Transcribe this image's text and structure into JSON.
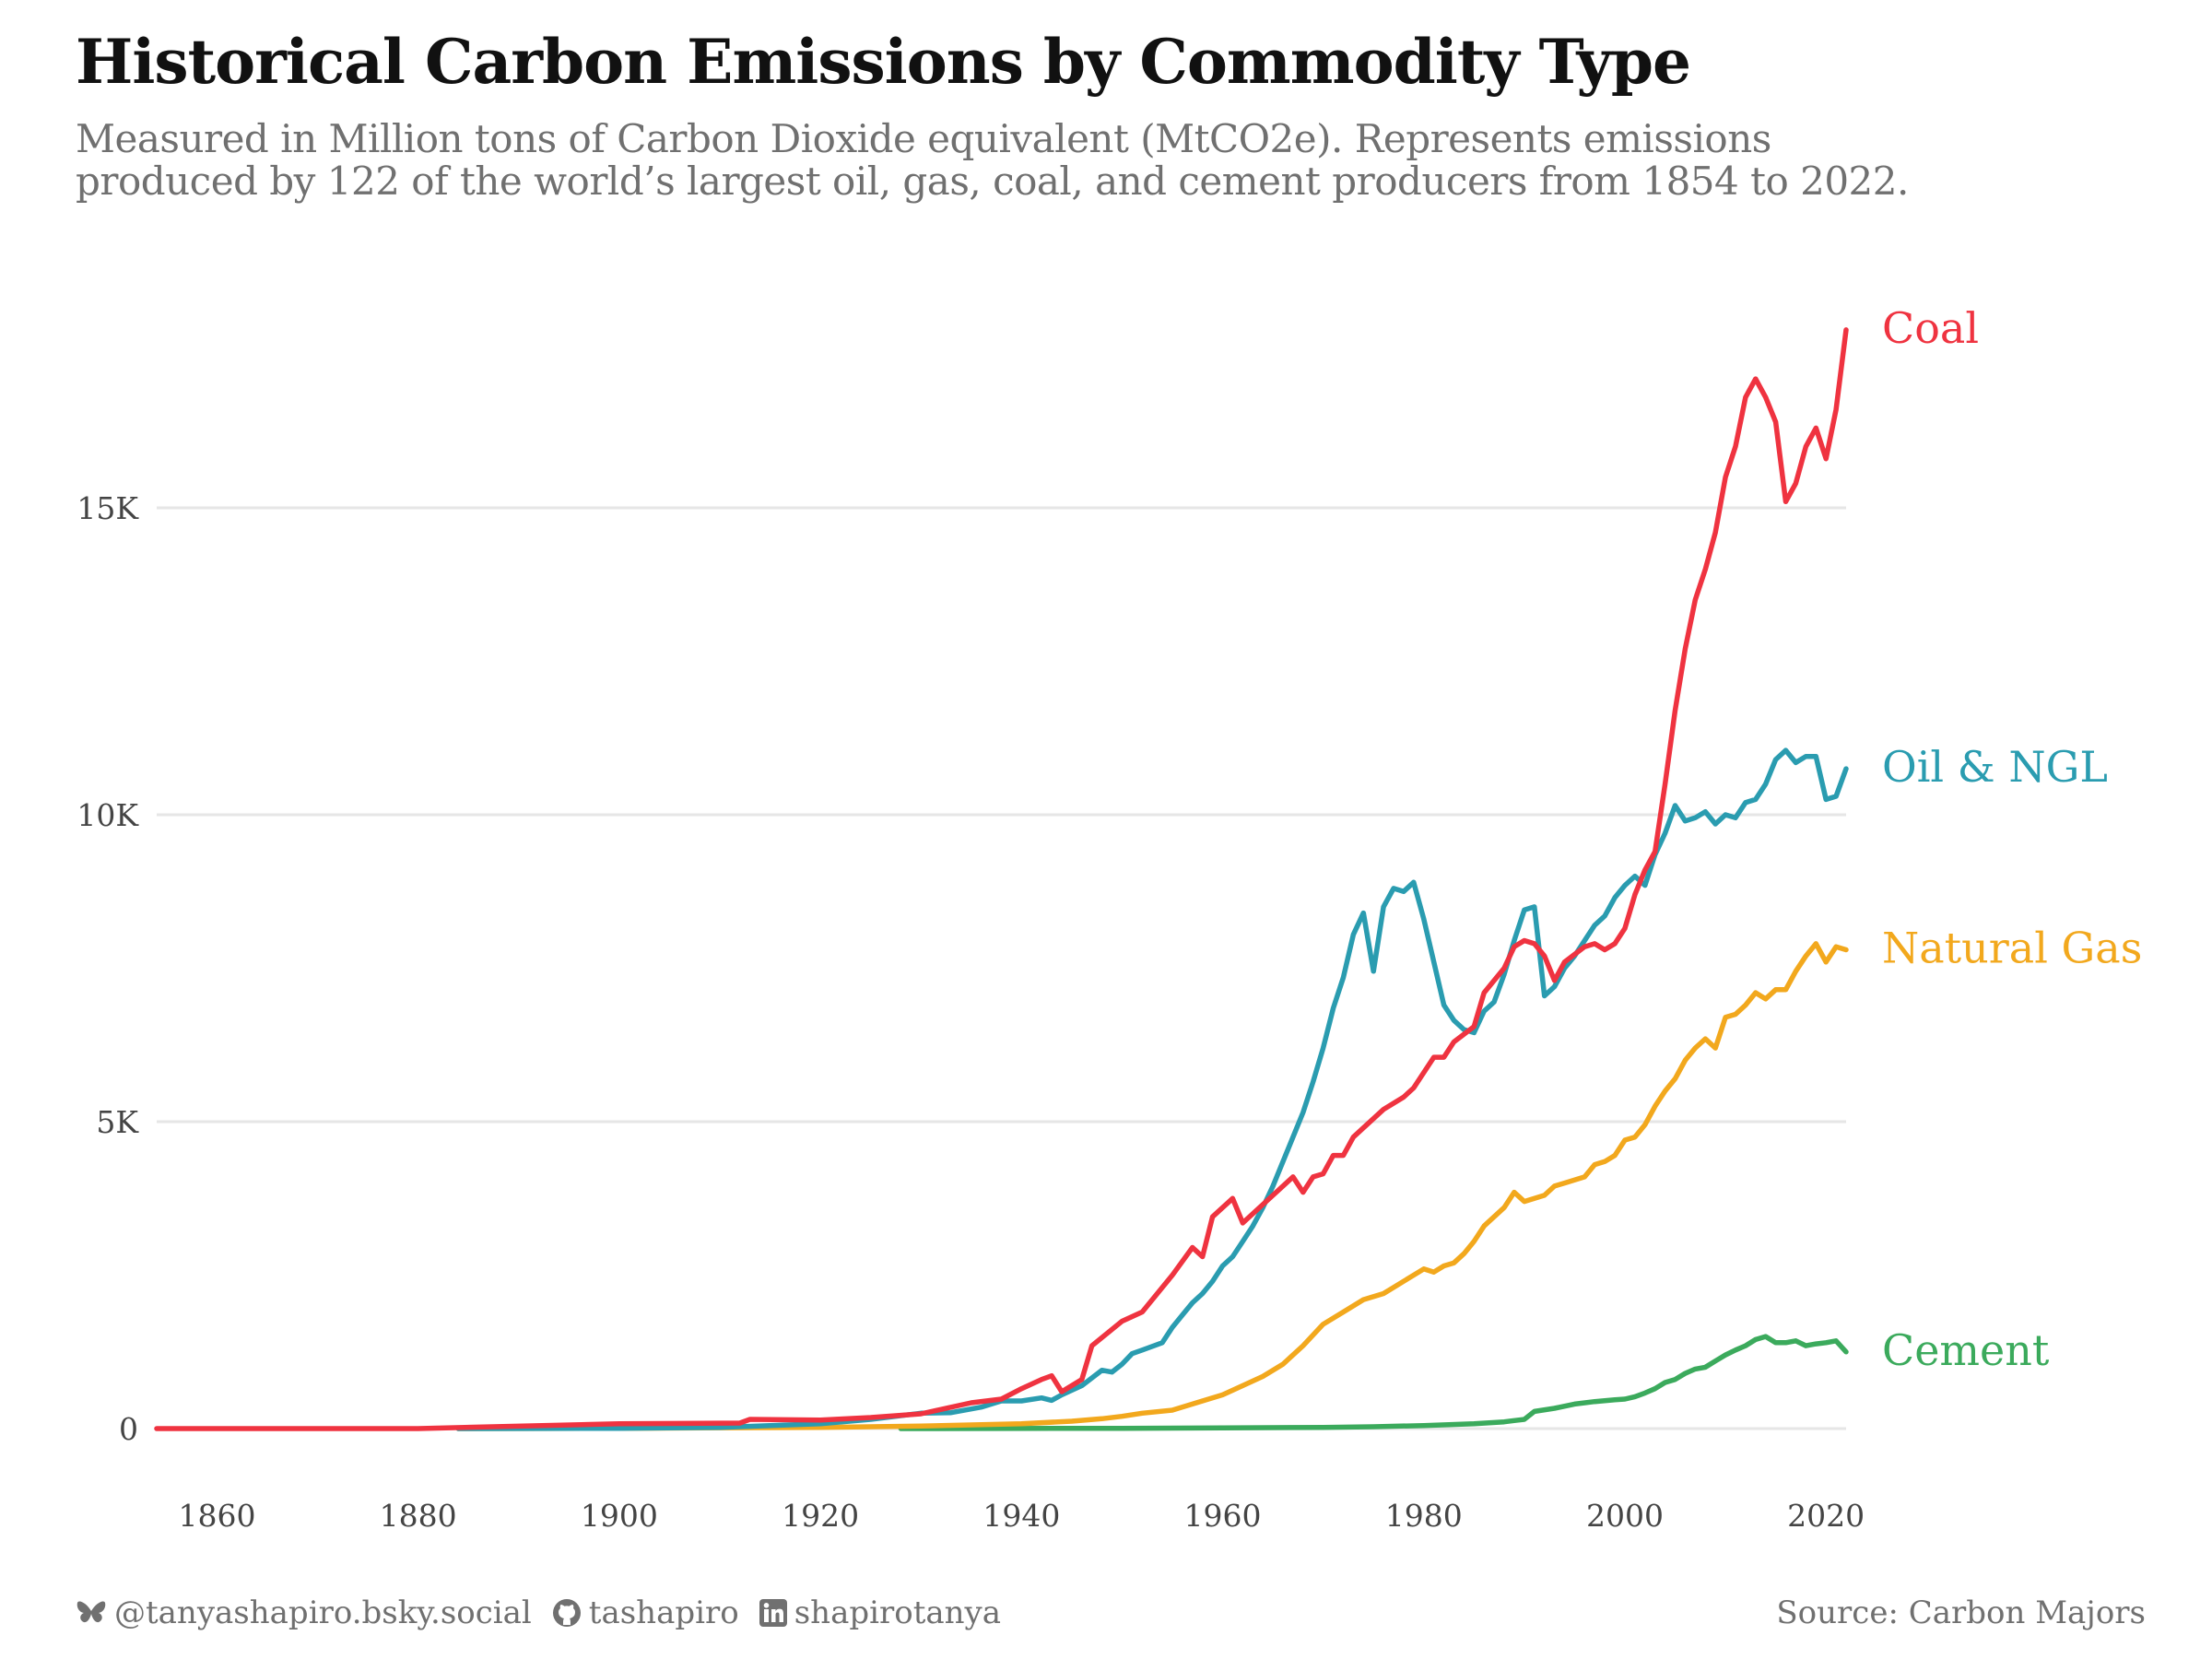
{
  "header": {
    "title": "Historical Carbon Emissions by Commodity Type",
    "subtitle_line1": "Measured in Million tons of Carbon Dioxide equivalent (MtCO2e). Represents emissions",
    "subtitle_line2": "produced by 122 of the world’s largest oil, gas, coal, and cement producers from 1854 to 2022."
  },
  "footer": {
    "bluesky": "@tanyashapiro.bsky.social",
    "github": "tashapiro",
    "linkedin": "shapirotanya",
    "source": "Source: Carbon Majors",
    "icons": [
      "butterfly-icon",
      "github-icon",
      "linkedin-icon"
    ]
  },
  "chart_data": {
    "type": "line",
    "xlim": [
      1854,
      2022
    ],
    "ylim": [
      0,
      18000
    ],
    "x_ticks": [
      1860,
      1880,
      1900,
      1920,
      1940,
      1960,
      1980,
      2000,
      2020
    ],
    "x_tick_labels": [
      "1860",
      "1880",
      "1900",
      "1920",
      "1940",
      "1960",
      "1980",
      "2000",
      "2020"
    ],
    "y_ticks": [
      0,
      5000,
      10000,
      15000
    ],
    "y_tick_labels": [
      "0",
      "5K",
      "10K",
      "15K"
    ],
    "grid": "horizontal",
    "legend": "direct labels at line ends",
    "series": [
      {
        "name": "Coal",
        "color": "#EF3340",
        "points": [
          [
            1854,
            0
          ],
          [
            1880,
            0
          ],
          [
            1900,
            80
          ],
          [
            1912,
            90
          ],
          [
            1913,
            150
          ],
          [
            1920,
            140
          ],
          [
            1925,
            180
          ],
          [
            1930,
            240
          ],
          [
            1935,
            420
          ],
          [
            1938,
            480
          ],
          [
            1940,
            650
          ],
          [
            1942,
            800
          ],
          [
            1943,
            860
          ],
          [
            1944,
            600
          ],
          [
            1946,
            800
          ],
          [
            1947,
            1350
          ],
          [
            1950,
            1750
          ],
          [
            1952,
            1900
          ],
          [
            1955,
            2500
          ],
          [
            1957,
            2950
          ],
          [
            1958,
            2800
          ],
          [
            1959,
            3450
          ],
          [
            1961,
            3750
          ],
          [
            1962,
            3350
          ],
          [
            1965,
            3800
          ],
          [
            1967,
            4100
          ],
          [
            1968,
            3850
          ],
          [
            1969,
            4100
          ],
          [
            1970,
            4150
          ],
          [
            1971,
            4450
          ],
          [
            1972,
            4450
          ],
          [
            1973,
            4750
          ],
          [
            1975,
            5050
          ],
          [
            1976,
            5200
          ],
          [
            1978,
            5400
          ],
          [
            1979,
            5550
          ],
          [
            1981,
            6050
          ],
          [
            1982,
            6050
          ],
          [
            1983,
            6300
          ],
          [
            1985,
            6550
          ],
          [
            1986,
            7100
          ],
          [
            1988,
            7500
          ],
          [
            1989,
            7850
          ],
          [
            1990,
            7950
          ],
          [
            1991,
            7900
          ],
          [
            1992,
            7700
          ],
          [
            1993,
            7300
          ],
          [
            1994,
            7600
          ],
          [
            1996,
            7850
          ],
          [
            1997,
            7900
          ],
          [
            1998,
            7800
          ],
          [
            1999,
            7900
          ],
          [
            2000,
            8150
          ],
          [
            2001,
            8700
          ],
          [
            2002,
            9100
          ],
          [
            2003,
            9400
          ],
          [
            2004,
            10500
          ],
          [
            2005,
            11700
          ],
          [
            2006,
            12700
          ],
          [
            2007,
            13500
          ],
          [
            2008,
            14000
          ],
          [
            2009,
            14600
          ],
          [
            2010,
            15500
          ],
          [
            2011,
            16000
          ],
          [
            2012,
            16800
          ],
          [
            2013,
            17100
          ],
          [
            2014,
            16800
          ],
          [
            2015,
            16400
          ],
          [
            2016,
            15100
          ],
          [
            2017,
            15400
          ],
          [
            2018,
            16000
          ],
          [
            2019,
            16300
          ],
          [
            2020,
            15800
          ],
          [
            2021,
            16600
          ],
          [
            2022,
            17900
          ]
        ]
      },
      {
        "name": "Oil & NGL",
        "color": "#2A9CB0",
        "points": [
          [
            1884,
            0
          ],
          [
            1900,
            5
          ],
          [
            1910,
            20
          ],
          [
            1915,
            50
          ],
          [
            1920,
            80
          ],
          [
            1925,
            150
          ],
          [
            1930,
            250
          ],
          [
            1933,
            260
          ],
          [
            1936,
            350
          ],
          [
            1938,
            450
          ],
          [
            1940,
            450
          ],
          [
            1942,
            500
          ],
          [
            1943,
            460
          ],
          [
            1944,
            550
          ],
          [
            1946,
            700
          ],
          [
            1948,
            950
          ],
          [
            1949,
            920
          ],
          [
            1950,
            1050
          ],
          [
            1951,
            1220
          ],
          [
            1952,
            1280
          ],
          [
            1954,
            1400
          ],
          [
            1955,
            1650
          ],
          [
            1956,
            1850
          ],
          [
            1957,
            2050
          ],
          [
            1958,
            2200
          ],
          [
            1959,
            2400
          ],
          [
            1960,
            2650
          ],
          [
            1961,
            2800
          ],
          [
            1962,
            3050
          ],
          [
            1963,
            3300
          ],
          [
            1964,
            3600
          ],
          [
            1965,
            3950
          ],
          [
            1966,
            4350
          ],
          [
            1967,
            4750
          ],
          [
            1968,
            5150
          ],
          [
            1969,
            5650
          ],
          [
            1970,
            6200
          ],
          [
            1971,
            6850
          ],
          [
            1972,
            7350
          ],
          [
            1973,
            8050
          ],
          [
            1974,
            8400
          ],
          [
            1975,
            7450
          ],
          [
            1976,
            8500
          ],
          [
            1977,
            8800
          ],
          [
            1978,
            8750
          ],
          [
            1979,
            8900
          ],
          [
            1980,
            8300
          ],
          [
            1981,
            7600
          ],
          [
            1982,
            6900
          ],
          [
            1983,
            6650
          ],
          [
            1984,
            6500
          ],
          [
            1985,
            6450
          ],
          [
            1986,
            6800
          ],
          [
            1987,
            6950
          ],
          [
            1988,
            7400
          ],
          [
            1989,
            7950
          ],
          [
            1990,
            8450
          ],
          [
            1991,
            8500
          ],
          [
            1992,
            7050
          ],
          [
            1993,
            7200
          ],
          [
            1994,
            7500
          ],
          [
            1995,
            7700
          ],
          [
            1996,
            7950
          ],
          [
            1997,
            8200
          ],
          [
            1998,
            8350
          ],
          [
            1999,
            8650
          ],
          [
            2000,
            8850
          ],
          [
            2001,
            9000
          ],
          [
            2002,
            8850
          ],
          [
            2003,
            9350
          ],
          [
            2004,
            9700
          ],
          [
            2005,
            10150
          ],
          [
            2006,
            9900
          ],
          [
            2007,
            9950
          ],
          [
            2008,
            10050
          ],
          [
            2009,
            9850
          ],
          [
            2010,
            10000
          ],
          [
            2011,
            9950
          ],
          [
            2012,
            10200
          ],
          [
            2013,
            10250
          ],
          [
            2014,
            10500
          ],
          [
            2015,
            10900
          ],
          [
            2016,
            11050
          ],
          [
            2017,
            10850
          ],
          [
            2018,
            10950
          ],
          [
            2019,
            10950
          ],
          [
            2020,
            10250
          ],
          [
            2021,
            10300
          ],
          [
            2022,
            10750
          ]
        ]
      },
      {
        "name": "Natural Gas",
        "color": "#F2A81D",
        "points": [
          [
            1884,
            0
          ],
          [
            1900,
            5
          ],
          [
            1920,
            20
          ],
          [
            1930,
            40
          ],
          [
            1940,
            80
          ],
          [
            1945,
            120
          ],
          [
            1948,
            160
          ],
          [
            1950,
            200
          ],
          [
            1952,
            250
          ],
          [
            1955,
            300
          ],
          [
            1958,
            450
          ],
          [
            1960,
            550
          ],
          [
            1962,
            700
          ],
          [
            1964,
            850
          ],
          [
            1966,
            1050
          ],
          [
            1968,
            1350
          ],
          [
            1970,
            1700
          ],
          [
            1972,
            1900
          ],
          [
            1974,
            2100
          ],
          [
            1976,
            2200
          ],
          [
            1978,
            2400
          ],
          [
            1980,
            2600
          ],
          [
            1981,
            2550
          ],
          [
            1982,
            2650
          ],
          [
            1983,
            2700
          ],
          [
            1984,
            2850
          ],
          [
            1985,
            3050
          ],
          [
            1986,
            3300
          ],
          [
            1988,
            3600
          ],
          [
            1989,
            3850
          ],
          [
            1990,
            3700
          ],
          [
            1991,
            3750
          ],
          [
            1992,
            3800
          ],
          [
            1993,
            3950
          ],
          [
            1994,
            4000
          ],
          [
            1995,
            4050
          ],
          [
            1996,
            4100
          ],
          [
            1997,
            4300
          ],
          [
            1998,
            4350
          ],
          [
            1999,
            4450
          ],
          [
            2000,
            4700
          ],
          [
            2001,
            4750
          ],
          [
            2002,
            4950
          ],
          [
            2003,
            5250
          ],
          [
            2004,
            5500
          ],
          [
            2005,
            5700
          ],
          [
            2006,
            6000
          ],
          [
            2007,
            6200
          ],
          [
            2008,
            6350
          ],
          [
            2009,
            6200
          ],
          [
            2010,
            6700
          ],
          [
            2011,
            6750
          ],
          [
            2012,
            6900
          ],
          [
            2013,
            7100
          ],
          [
            2014,
            7000
          ],
          [
            2015,
            7150
          ],
          [
            2016,
            7150
          ],
          [
            2017,
            7450
          ],
          [
            2018,
            7700
          ],
          [
            2019,
            7900
          ],
          [
            2020,
            7600
          ],
          [
            2021,
            7850
          ],
          [
            2022,
            7800
          ]
        ]
      },
      {
        "name": "Cement",
        "color": "#3BAA5C",
        "points": [
          [
            1928,
            0
          ],
          [
            1950,
            5
          ],
          [
            1960,
            10
          ],
          [
            1970,
            20
          ],
          [
            1975,
            30
          ],
          [
            1980,
            50
          ],
          [
            1985,
            80
          ],
          [
            1988,
            110
          ],
          [
            1989,
            130
          ],
          [
            1990,
            150
          ],
          [
            1991,
            280
          ],
          [
            1993,
            330
          ],
          [
            1995,
            400
          ],
          [
            1997,
            440
          ],
          [
            1999,
            470
          ],
          [
            2000,
            480
          ],
          [
            2001,
            520
          ],
          [
            2002,
            580
          ],
          [
            2003,
            650
          ],
          [
            2004,
            750
          ],
          [
            2005,
            800
          ],
          [
            2006,
            900
          ],
          [
            2007,
            970
          ],
          [
            2008,
            1000
          ],
          [
            2009,
            1100
          ],
          [
            2010,
            1200
          ],
          [
            2011,
            1280
          ],
          [
            2012,
            1350
          ],
          [
            2013,
            1450
          ],
          [
            2014,
            1500
          ],
          [
            2015,
            1400
          ],
          [
            2016,
            1400
          ],
          [
            2017,
            1430
          ],
          [
            2018,
            1350
          ],
          [
            2019,
            1380
          ],
          [
            2020,
            1400
          ],
          [
            2021,
            1430
          ],
          [
            2022,
            1250
          ]
        ]
      }
    ]
  }
}
